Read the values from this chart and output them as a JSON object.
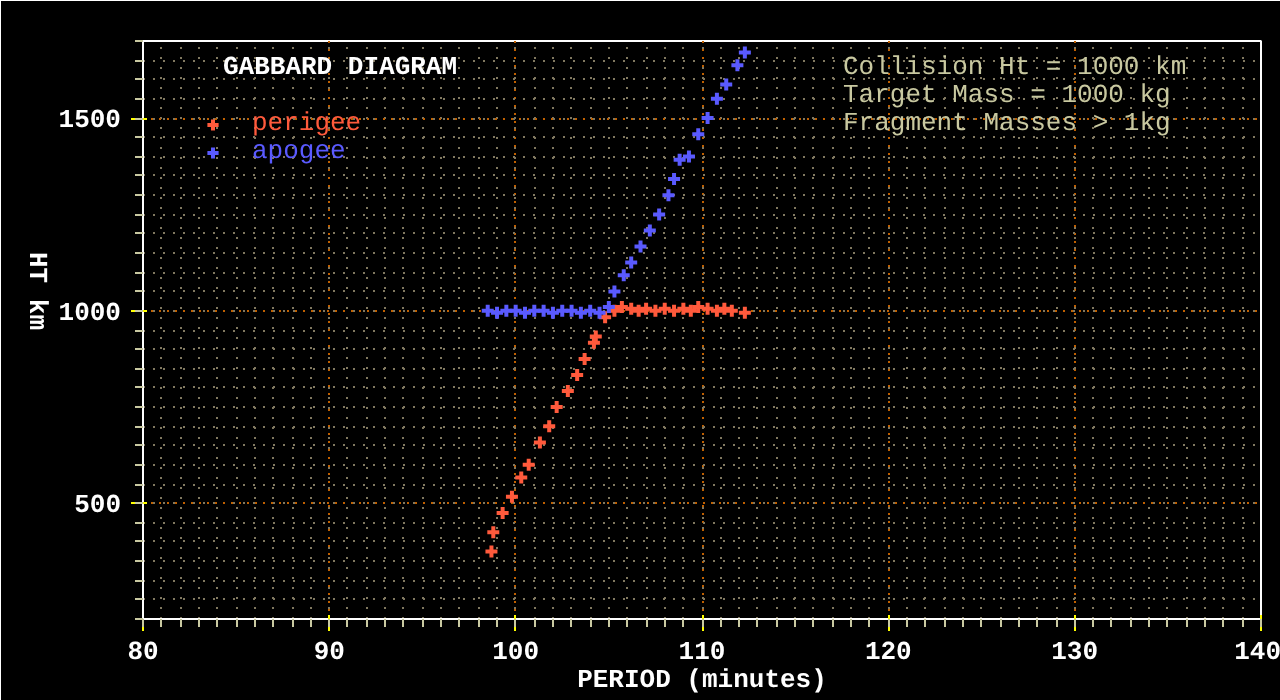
{
  "chart_data": {
    "type": "scatter",
    "title": "GABBARD DIAGRAM",
    "xlabel": "PERIOD (minutes)",
    "ylabel": "HT km",
    "annotations": [
      "Collision Ht = 1000 km",
      "Target Mass = 1000 kg",
      "Fragment Masses > 1kg"
    ],
    "xlim": [
      80,
      140
    ],
    "xticks": [
      80,
      90,
      100,
      110,
      120,
      130,
      140
    ],
    "ylim": [
      200,
      1700
    ],
    "yticks": [
      500,
      1000,
      1500
    ],
    "grid": true,
    "legend": "top left",
    "marker": "cross",
    "series": [
      {
        "name": "perigee",
        "color": "#ff5a3c",
        "x": [
          98.7,
          98.8,
          99.3,
          99.8,
          100.3,
          100.7,
          101.3,
          101.8,
          102.2,
          102.8,
          103.3,
          103.7,
          104.2,
          104.3,
          104.8,
          105.3,
          105.7,
          106.2,
          106.6,
          107.0,
          107.5,
          108.0,
          108.5,
          109.0,
          109.4,
          109.8,
          110.3,
          110.8,
          111.2,
          111.6,
          112.3
        ],
        "values": [
          375,
          425,
          475,
          517,
          567,
          600,
          658,
          700,
          750,
          792,
          833,
          875,
          917,
          933,
          983,
          1000,
          1010,
          1005,
          1000,
          1005,
          1000,
          1005,
          1000,
          1005,
          1000,
          1010,
          1005,
          1000,
          1005,
          1000,
          995
        ]
      },
      {
        "name": "apogee",
        "color": "#5a5aff",
        "x": [
          98.5,
          99.0,
          99.5,
          100.0,
          100.5,
          101.0,
          101.5,
          102.0,
          102.5,
          103.0,
          103.5,
          104.0,
          104.5,
          105.0,
          105.3,
          105.8,
          106.2,
          106.7,
          107.2,
          107.7,
          108.2,
          108.5,
          108.8,
          109.3,
          109.8,
          110.3,
          110.8,
          111.3,
          111.9,
          112.3
        ],
        "values": [
          1000,
          995,
          1000,
          1000,
          995,
          1000,
          1000,
          995,
          1000,
          1000,
          995,
          1000,
          995,
          1010,
          1050,
          1092,
          1125,
          1167,
          1208,
          1250,
          1300,
          1342,
          1392,
          1400,
          1458,
          1500,
          1550,
          1587,
          1637,
          1670
        ]
      }
    ]
  }
}
